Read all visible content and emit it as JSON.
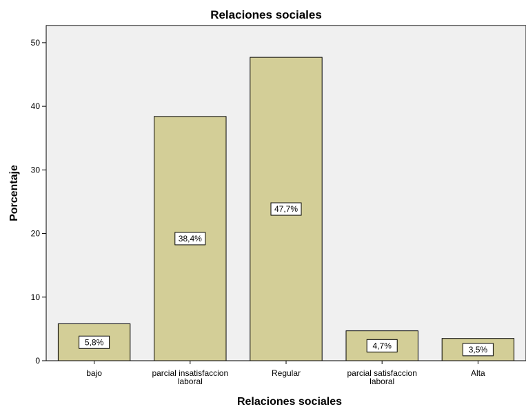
{
  "chart_data": {
    "type": "bar",
    "title": "Relaciones sociales",
    "xlabel": "Relaciones sociales",
    "ylabel": "Porcentaje",
    "categories": [
      [
        "bajo"
      ],
      [
        "parcial insatisfaccion",
        "laboral"
      ],
      [
        "Regular"
      ],
      [
        "parcial satisfaccion",
        "laboral"
      ],
      [
        "Alta"
      ]
    ],
    "values": [
      5.8,
      38.4,
      47.7,
      4.7,
      3.5
    ],
    "data_labels": [
      "5,8%",
      "38,4%",
      "47,7%",
      "4,7%",
      "3,5%"
    ],
    "ylim": [
      0,
      52.7
    ],
    "yticks": [
      0,
      10,
      20,
      30,
      40,
      50
    ],
    "grid": false,
    "colors": {
      "plot_background": "#f0f0f0",
      "bar_fill": "#d3ce97",
      "bar_stroke": "#000000"
    }
  }
}
